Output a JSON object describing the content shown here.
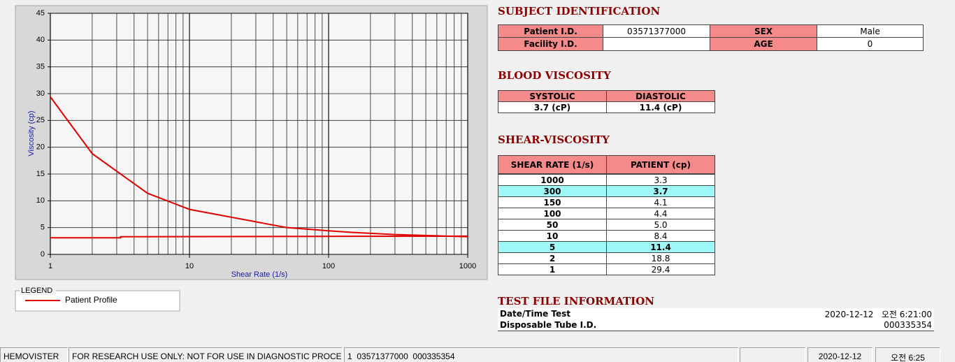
{
  "chart_data": {
    "type": "line",
    "x_label": "Shear Rate (1/s)",
    "y_label": "Viscosity (cp)",
    "x_log": true,
    "xlim": [
      1,
      1000
    ],
    "xticks": [
      1,
      10,
      100,
      1000
    ],
    "ylim": [
      0,
      45
    ],
    "yticks": [
      0,
      5,
      10,
      15,
      20,
      25,
      30,
      35,
      40,
      45
    ],
    "grid": true,
    "legend_title": "LEGEND",
    "series": [
      {
        "name": "Patient Profile",
        "color": "#e00000",
        "x": [
          1,
          2,
          5,
          10,
          50,
          100,
          150,
          300,
          1000
        ],
        "values": [
          29.4,
          18.8,
          11.4,
          8.4,
          5.0,
          4.4,
          4.1,
          3.7,
          3.3
        ]
      },
      {
        "color": "#e00000",
        "x": [
          1,
          3.2,
          3.2,
          1000
        ],
        "values": [
          3.1,
          3.1,
          3.3,
          3.4
        ]
      }
    ]
  },
  "subject_identification": {
    "title": "SUBJECT IDENTIFICATION",
    "rows": [
      [
        "Patient I.D.",
        "03571377000",
        "SEX",
        "Male"
      ],
      [
        "Facility I.D.",
        null,
        "AGE",
        "0"
      ]
    ]
  },
  "blood_viscosity": {
    "title": "BLOOD VISCOSITY",
    "header": [
      "SYSTOLIC",
      "DIASTOLIC"
    ],
    "row": [
      "3.7 (cP)",
      "11.4 (cP)"
    ]
  },
  "shear_viscosity": {
    "title": "SHEAR-VISCOSITY",
    "header": [
      "SHEAR RATE (1/s)",
      "PATIENT (cp)"
    ],
    "rows": [
      [
        "1000",
        "3.3"
      ],
      [
        "300",
        "3.7"
      ],
      [
        "150",
        "4.1"
      ],
      [
        "100",
        "4.4"
      ],
      [
        "50",
        "5.0"
      ],
      [
        "10",
        "8.4"
      ],
      [
        "5",
        "11.4"
      ],
      [
        "2",
        "18.8"
      ],
      [
        "1",
        "29.4"
      ]
    ],
    "highlighted_rows": [
      1,
      6
    ],
    "highlight_color": "#9ff8f8"
  },
  "test_file_information": {
    "title": "TEST FILE INFORMATION",
    "rows": [
      [
        "Date/Time Test",
        "2020-12-12   오전 6:21:00"
      ],
      [
        "Disposable Tube I.D.",
        "000335354"
      ]
    ]
  },
  "status_bar": [
    "HEMOVISTER",
    "FOR RESEARCH USE ONLY: NOT FOR USE IN DIAGNOSTIC PROCEDURES",
    "1  03571377000  000335354",
    null,
    "2020-12-12",
    "오전 6:25"
  ]
}
